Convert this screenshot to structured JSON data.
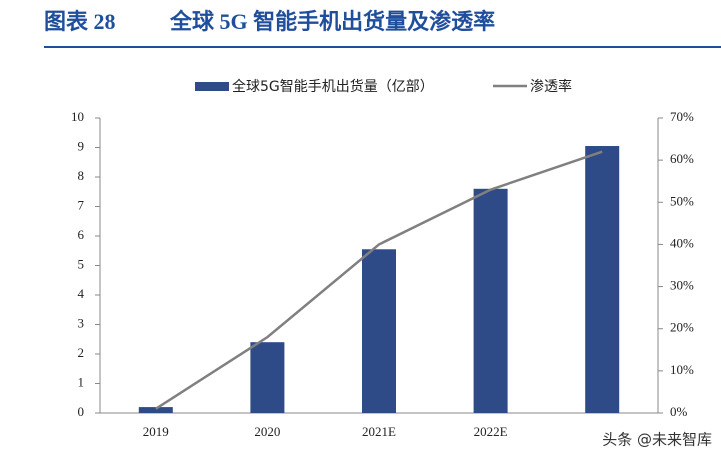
{
  "chart_data": {
    "type": "bar-line",
    "label": "图表 28",
    "title": "全球 5G 智能手机出货量及渗透率",
    "categories": [
      "2019",
      "2020",
      "2021E",
      "2022E",
      null
    ],
    "series": [
      {
        "name": "全球5G智能手机出货量（亿部）",
        "type": "bar",
        "color": "#2e4a87",
        "values": [
          0.2,
          2.4,
          5.55,
          7.6,
          9.05
        ]
      },
      {
        "name": "渗透率",
        "type": "line",
        "axis": "y2",
        "color": "#808080",
        "values": [
          1,
          18,
          40,
          53,
          62
        ]
      }
    ],
    "ylim": [
      0,
      10
    ],
    "yticks": [
      0,
      1,
      2,
      3,
      4,
      5,
      6,
      7,
      8,
      9,
      10
    ],
    "y2lim": [
      0,
      70
    ],
    "y2ticks": [
      {
        "value": 0,
        "label": "0%"
      },
      {
        "value": 10,
        "label": "10%"
      },
      {
        "value": 20,
        "label": "20%"
      },
      {
        "value": 30,
        "label": "30%"
      },
      {
        "value": 40,
        "label": "40%"
      },
      {
        "value": 50,
        "label": "50%"
      },
      {
        "value": 60,
        "label": "60%"
      },
      {
        "value": 70,
        "label": "70%"
      }
    ],
    "grid": false
  },
  "watermark": "头条 @未来智库"
}
